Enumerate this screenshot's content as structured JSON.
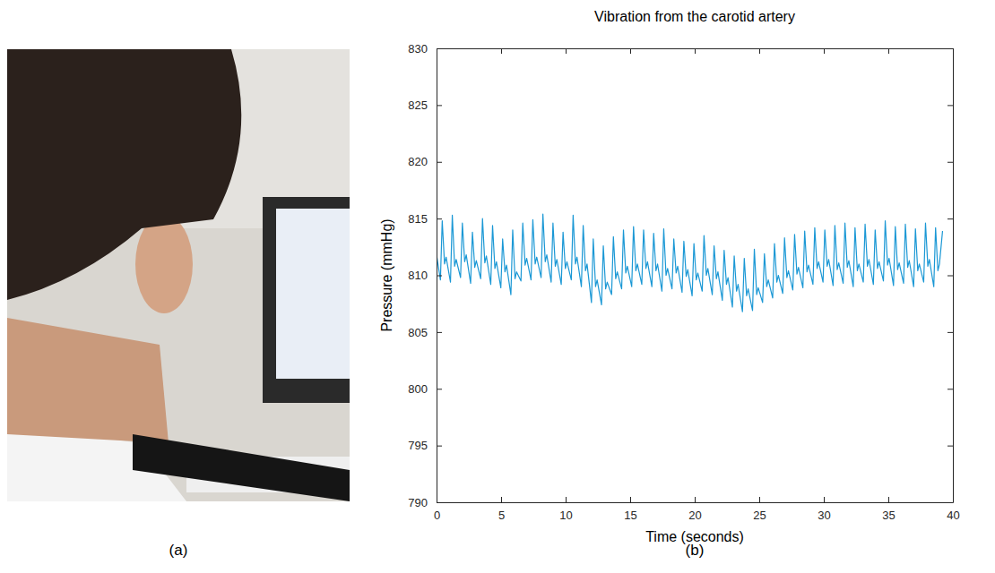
{
  "panels": [
    "(a)",
    "(b)"
  ],
  "chart_data": {
    "type": "line",
    "title": "Vibration from the carotid artery",
    "x_label": "Time (seconds)",
    "y_label": "Pressure (mmHg)",
    "color": "#1b98d5",
    "grid": false,
    "xlim": [
      0,
      40
    ],
    "xticks": [
      0,
      5,
      10,
      15,
      20,
      25,
      30,
      35,
      40
    ],
    "ylim": [
      790,
      830
    ],
    "yticks": [
      790,
      795,
      800,
      805,
      810,
      815,
      820,
      825,
      830
    ],
    "x": [
      0,
      0.3,
      0.44,
      0.62,
      0.74,
      1.08,
      1.22,
      1.4,
      1.52,
      1.86,
      2.0,
      2.18,
      2.3,
      2.64,
      2.78,
      2.96,
      3.08,
      3.42,
      3.56,
      3.74,
      3.86,
      4.2,
      4.34,
      4.52,
      4.64,
      4.98,
      5.12,
      5.3,
      5.42,
      5.76,
      5.9,
      6.08,
      6.2,
      6.54,
      6.68,
      6.86,
      6.98,
      7.32,
      7.46,
      7.64,
      7.76,
      8.1,
      8.24,
      8.42,
      8.54,
      8.88,
      9.02,
      9.2,
      9.32,
      9.66,
      9.8,
      9.98,
      10.1,
      10.44,
      10.58,
      10.76,
      10.88,
      11.22,
      11.36,
      11.54,
      11.66,
      12.0,
      12.14,
      12.32,
      12.44,
      12.78,
      12.92,
      13.1,
      13.22,
      13.56,
      13.7,
      13.88,
      14.0,
      14.34,
      14.48,
      14.66,
      14.78,
      15.12,
      15.26,
      15.44,
      15.56,
      15.9,
      16.04,
      16.22,
      16.34,
      16.68,
      16.82,
      17.0,
      17.12,
      17.46,
      17.6,
      17.78,
      17.9,
      18.24,
      18.38,
      18.56,
      18.68,
      19.02,
      19.16,
      19.34,
      19.46,
      19.8,
      19.94,
      20.12,
      20.24,
      20.58,
      20.72,
      20.9,
      21.02,
      21.36,
      21.5,
      21.68,
      21.8,
      22.14,
      22.28,
      22.46,
      22.58,
      22.92,
      23.06,
      23.24,
      23.36,
      23.7,
      23.84,
      24.02,
      24.14,
      24.48,
      24.62,
      24.8,
      24.92,
      25.26,
      25.4,
      25.58,
      25.7,
      26.04,
      26.18,
      26.36,
      26.48,
      26.82,
      26.96,
      27.14,
      27.26,
      27.6,
      27.74,
      27.92,
      28.04,
      28.38,
      28.52,
      28.7,
      28.82,
      29.16,
      29.3,
      29.48,
      29.6,
      29.94,
      30.08,
      30.26,
      30.38,
      30.72,
      30.86,
      31.04,
      31.16,
      31.5,
      31.64,
      31.82,
      31.94,
      32.28,
      32.42,
      32.6,
      32.72,
      33.06,
      33.2,
      33.38,
      33.5,
      33.84,
      33.98,
      34.16,
      34.28,
      34.62,
      34.76,
      34.94,
      35.06,
      35.4,
      35.54,
      35.72,
      35.84,
      36.18,
      36.32,
      36.5,
      36.62,
      36.96,
      37.1,
      37.28,
      37.4,
      37.74,
      37.88,
      38.06,
      38.18,
      38.52,
      38.66,
      38.84,
      38.96,
      39.2
    ],
    "values": [
      811.8,
      809.6,
      814.8,
      811.0,
      811.6,
      809.4,
      815.3,
      810.8,
      811.4,
      809.8,
      814.6,
      811.2,
      811.8,
      809.3,
      813.8,
      810.7,
      811.3,
      809.7,
      815.0,
      811.1,
      811.7,
      809.2,
      814.4,
      810.6,
      811.2,
      808.9,
      813.2,
      810.3,
      810.9,
      808.3,
      814.0,
      809.7,
      810.3,
      809.5,
      814.6,
      810.9,
      811.5,
      809.6,
      814.9,
      811.0,
      811.6,
      809.8,
      815.4,
      811.2,
      811.8,
      809.4,
      814.6,
      810.8,
      811.4,
      809.2,
      813.8,
      810.6,
      811.2,
      809.6,
      815.3,
      811.0,
      811.6,
      809.0,
      814.4,
      810.4,
      811.0,
      807.6,
      813.2,
      809.0,
      809.6,
      807.4,
      812.6,
      808.8,
      809.4,
      808.3,
      813.4,
      809.7,
      810.3,
      808.8,
      814.0,
      810.2,
      810.8,
      809.0,
      814.3,
      810.4,
      811.0,
      809.2,
      814.0,
      810.6,
      811.2,
      809.0,
      813.7,
      810.4,
      811.0,
      808.6,
      814.1,
      810.0,
      810.6,
      808.8,
      813.2,
      810.2,
      810.8,
      808.5,
      813.0,
      809.9,
      810.5,
      808.2,
      812.8,
      809.6,
      810.2,
      808.6,
      813.5,
      810.0,
      810.6,
      808.3,
      812.6,
      809.7,
      810.3,
      807.8,
      812.2,
      809.2,
      809.8,
      807.2,
      811.7,
      808.6,
      809.2,
      806.8,
      811.5,
      808.2,
      808.8,
      806.9,
      812.3,
      808.3,
      808.9,
      807.6,
      811.9,
      809.0,
      809.6,
      808.0,
      812.8,
      809.4,
      810.0,
      808.4,
      813.3,
      809.8,
      810.4,
      808.7,
      813.6,
      810.1,
      810.7,
      808.9,
      813.9,
      810.3,
      810.9,
      809.2,
      814.2,
      810.6,
      811.2,
      809.4,
      814.0,
      810.8,
      811.4,
      809.1,
      814.4,
      810.5,
      811.1,
      809.3,
      814.6,
      810.7,
      811.3,
      809.0,
      814.2,
      810.4,
      811.0,
      809.4,
      814.5,
      810.8,
      811.4,
      809.2,
      814.0,
      810.6,
      811.2,
      809.5,
      814.8,
      810.9,
      811.5,
      809.1,
      814.3,
      810.5,
      811.1,
      809.3,
      814.5,
      810.7,
      811.3,
      809.0,
      814.1,
      810.4,
      811.0,
      809.4,
      814.6,
      810.8,
      811.4,
      809.0,
      814.2,
      810.4,
      811.0,
      813.9
    ]
  }
}
